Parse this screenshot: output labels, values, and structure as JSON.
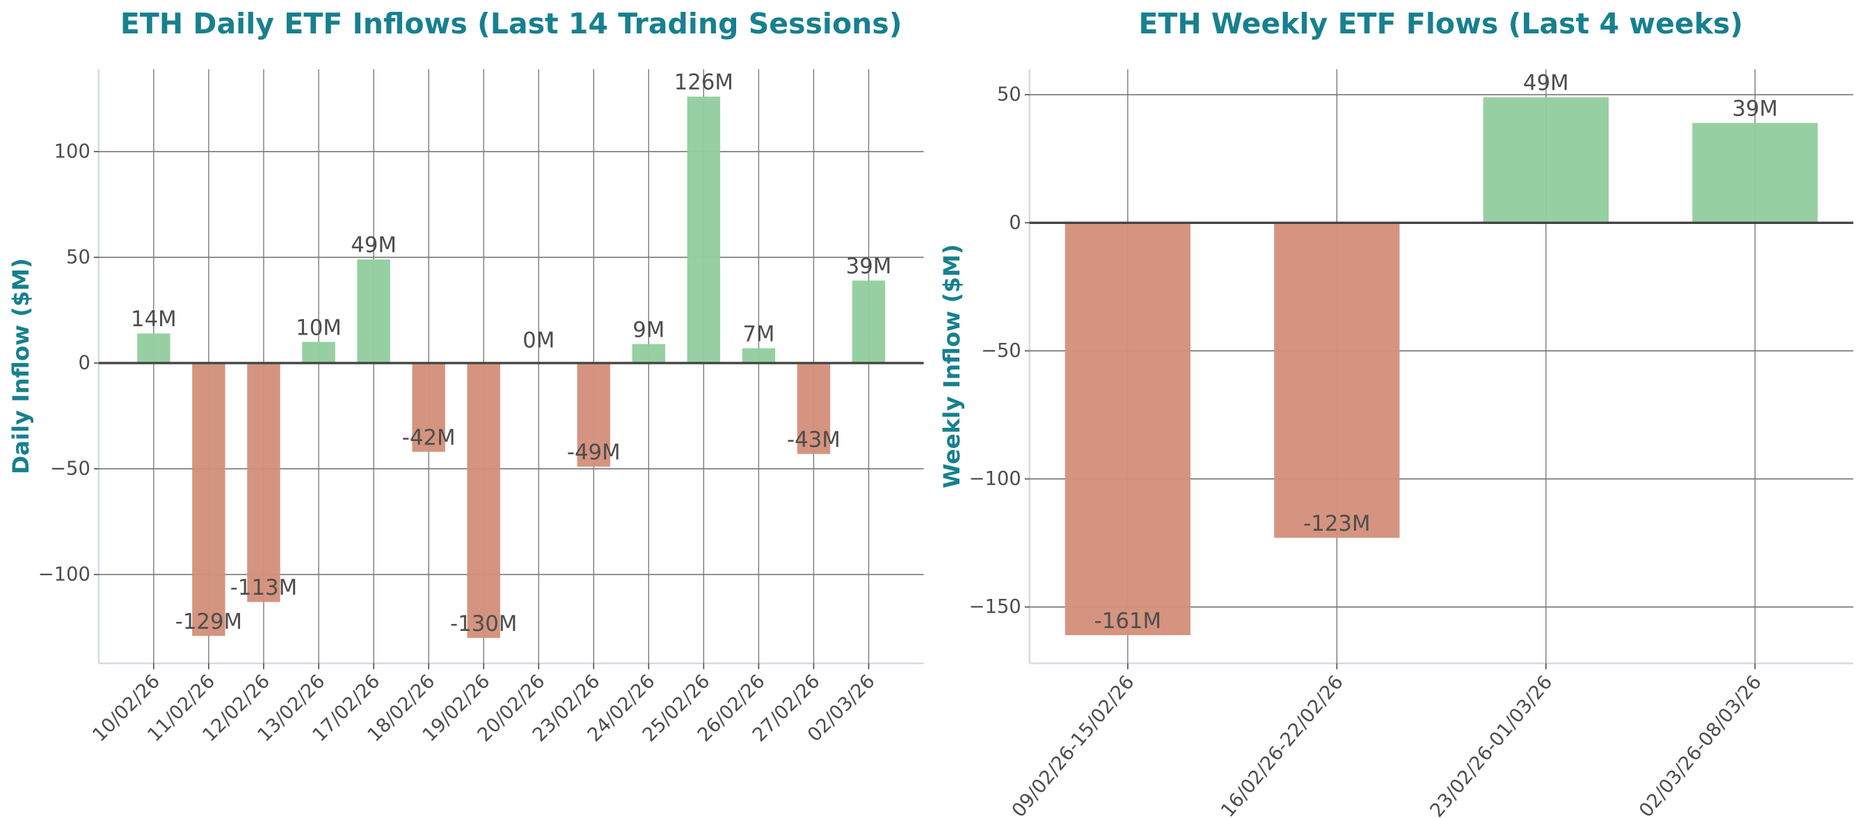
{
  "colors": {
    "positive": "#93ce9f",
    "negative": "#d4917b",
    "title": "#17808f",
    "text": "#4d4d4d"
  },
  "chart_data": [
    {
      "type": "bar",
      "title": "ETH Daily ETF Inflows (Last 14 Trading Sessions)",
      "xlabel": "",
      "ylabel": "Daily Inflow ($M)",
      "categories": [
        "10/02/26",
        "11/02/26",
        "12/02/26",
        "13/02/26",
        "17/02/26",
        "18/02/26",
        "19/02/26",
        "20/02/26",
        "23/02/26",
        "24/02/26",
        "25/02/26",
        "26/02/26",
        "27/02/26",
        "02/03/26"
      ],
      "values": [
        14,
        -129,
        -113,
        10,
        49,
        -42,
        -130,
        0,
        -49,
        9,
        126,
        7,
        -43,
        39
      ],
      "data_labels": [
        "14M",
        "-129M",
        "-113M",
        "10M",
        "49M",
        "-42M",
        "-130M",
        "0M",
        "-49M",
        "9M",
        "126M",
        "7M",
        "-43M",
        "39M"
      ],
      "ylim": [
        -142,
        139
      ],
      "yticks": [
        -100,
        -50,
        0,
        50,
        100
      ],
      "ytick_labels": [
        "−100",
        "−50",
        "0",
        "50",
        "100"
      ],
      "grid": true
    },
    {
      "type": "bar",
      "title": "ETH Weekly ETF Flows (Last 4 weeks)",
      "xlabel": "",
      "ylabel": "Weekly Inflow ($M)",
      "categories": [
        "09/02/26-15/02/26",
        "16/02/26-22/02/26",
        "23/02/26-01/03/26",
        "02/03/26-08/03/26"
      ],
      "values": [
        -161,
        -123,
        49,
        39
      ],
      "data_labels": [
        "-161M",
        "-123M",
        "49M",
        "39M"
      ],
      "ylim": [
        -172,
        60
      ],
      "yticks": [
        -150,
        -100,
        -50,
        0,
        50
      ],
      "ytick_labels": [
        "−150",
        "−100",
        "−50",
        "0",
        "50"
      ],
      "grid": true
    }
  ]
}
